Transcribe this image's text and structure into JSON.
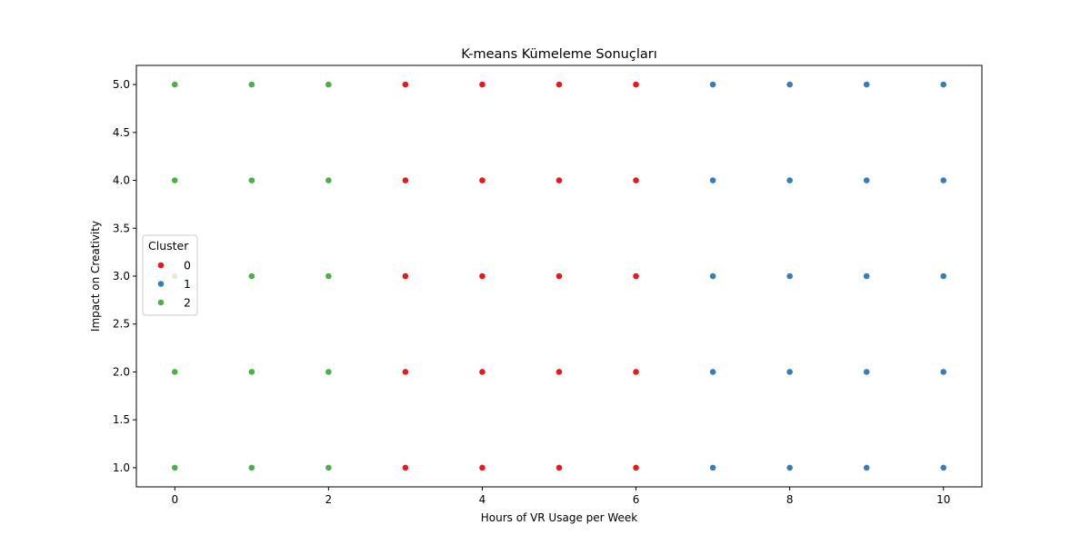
{
  "chart_data": {
    "type": "scatter",
    "title": "K-means Kümeleme Sonuçları",
    "xlabel": "Hours of VR Usage per Week",
    "ylabel": "Impact on Creativity",
    "xlim": [
      -0.5,
      10.5
    ],
    "ylim": [
      0.8,
      5.2
    ],
    "xticks": [
      0,
      2,
      4,
      6,
      8,
      10
    ],
    "yticks": [
      1.0,
      1.5,
      2.0,
      2.5,
      3.0,
      3.5,
      4.0,
      4.5,
      5.0
    ],
    "grid": false,
    "legend": {
      "title": "Cluster",
      "placement": "center-left",
      "entries": [
        "0",
        "1",
        "2"
      ]
    },
    "series": [
      {
        "name": "0",
        "color": "#e41a1c",
        "points": [
          {
            "x": 3,
            "y": 1
          },
          {
            "x": 3,
            "y": 2
          },
          {
            "x": 3,
            "y": 3
          },
          {
            "x": 3,
            "y": 4
          },
          {
            "x": 3,
            "y": 5
          },
          {
            "x": 4,
            "y": 1
          },
          {
            "x": 4,
            "y": 2
          },
          {
            "x": 4,
            "y": 3
          },
          {
            "x": 4,
            "y": 4
          },
          {
            "x": 4,
            "y": 5
          },
          {
            "x": 5,
            "y": 1
          },
          {
            "x": 5,
            "y": 2
          },
          {
            "x": 5,
            "y": 3
          },
          {
            "x": 5,
            "y": 4
          },
          {
            "x": 5,
            "y": 5
          },
          {
            "x": 6,
            "y": 1
          },
          {
            "x": 6,
            "y": 2
          },
          {
            "x": 6,
            "y": 3
          },
          {
            "x": 6,
            "y": 4
          },
          {
            "x": 6,
            "y": 5
          }
        ]
      },
      {
        "name": "1",
        "color": "#377eb8",
        "points": [
          {
            "x": 7,
            "y": 1
          },
          {
            "x": 7,
            "y": 2
          },
          {
            "x": 7,
            "y": 3
          },
          {
            "x": 7,
            "y": 4
          },
          {
            "x": 7,
            "y": 5
          },
          {
            "x": 8,
            "y": 1
          },
          {
            "x": 8,
            "y": 2
          },
          {
            "x": 8,
            "y": 3
          },
          {
            "x": 8,
            "y": 4
          },
          {
            "x": 8,
            "y": 5
          },
          {
            "x": 9,
            "y": 1
          },
          {
            "x": 9,
            "y": 2
          },
          {
            "x": 9,
            "y": 3
          },
          {
            "x": 9,
            "y": 4
          },
          {
            "x": 9,
            "y": 5
          },
          {
            "x": 10,
            "y": 1
          },
          {
            "x": 10,
            "y": 2
          },
          {
            "x": 10,
            "y": 3
          },
          {
            "x": 10,
            "y": 4
          },
          {
            "x": 10,
            "y": 5
          }
        ]
      },
      {
        "name": "2",
        "color": "#4daf4a",
        "points": [
          {
            "x": 0,
            "y": 1
          },
          {
            "x": 0,
            "y": 2
          },
          {
            "x": 0,
            "y": 3
          },
          {
            "x": 0,
            "y": 4
          },
          {
            "x": 0,
            "y": 5
          },
          {
            "x": 1,
            "y": 1
          },
          {
            "x": 1,
            "y": 2
          },
          {
            "x": 1,
            "y": 3
          },
          {
            "x": 1,
            "y": 4
          },
          {
            "x": 1,
            "y": 5
          },
          {
            "x": 2,
            "y": 1
          },
          {
            "x": 2,
            "y": 2
          },
          {
            "x": 2,
            "y": 3
          },
          {
            "x": 2,
            "y": 4
          },
          {
            "x": 2,
            "y": 5
          }
        ]
      }
    ]
  }
}
